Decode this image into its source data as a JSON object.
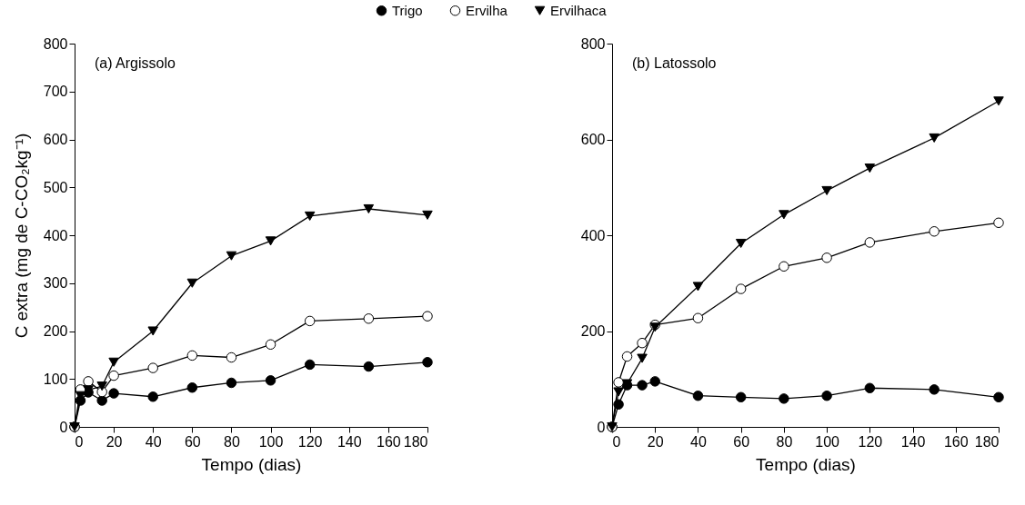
{
  "chart_data": [
    {
      "type": "line",
      "title": "(a) Argissolo",
      "xlabel": "Tempo (dias)",
      "ylabel": "C extra (mg de C-CO₂kg⁻¹)",
      "x": [
        0,
        3,
        7,
        14,
        20,
        40,
        60,
        80,
        100,
        120,
        150,
        180
      ],
      "xlim": [
        0,
        180
      ],
      "xticks": [
        0,
        20,
        40,
        60,
        80,
        100,
        120,
        140,
        160,
        180
      ],
      "ylim": [
        0,
        800
      ],
      "yticks": [
        0,
        100,
        200,
        300,
        400,
        500,
        600,
        700,
        800
      ],
      "legend": "top",
      "series": [
        {
          "name": "Trigo",
          "color": "#000000",
          "marker": "circle",
          "values": [
            0,
            55,
            72,
            55,
            70,
            63,
            82,
            92,
            97,
            130,
            126,
            135
          ]
        },
        {
          "name": "Ervilha",
          "color": "#ffffff",
          "marker": "circle",
          "values": [
            0,
            78,
            95,
            73,
            107,
            123,
            149,
            145,
            172,
            221,
            226,
            231
          ]
        },
        {
          "name": "Ervilhaca",
          "color": "#000000",
          "marker": "triangle",
          "values": [
            0,
            65,
            77,
            85,
            135,
            200,
            300,
            357,
            388,
            440,
            455,
            442
          ]
        }
      ]
    },
    {
      "type": "line",
      "title": "(b) Latossolo",
      "xlabel": "Tempo (dias)",
      "x": [
        0,
        3,
        7,
        14,
        20,
        40,
        60,
        80,
        100,
        120,
        150,
        180
      ],
      "xlim": [
        0,
        180
      ],
      "xticks": [
        0,
        20,
        40,
        60,
        80,
        100,
        120,
        140,
        160,
        180
      ],
      "ylim": [
        0,
        800
      ],
      "yticks": [
        0,
        200,
        400,
        600,
        800
      ],
      "legend": "top",
      "series": [
        {
          "name": "Trigo",
          "color": "#000000",
          "marker": "circle",
          "values": [
            0,
            47,
            87,
            87,
            95,
            65,
            62,
            59,
            65,
            81,
            78,
            62
          ]
        },
        {
          "name": "Ervilha",
          "color": "#ffffff",
          "marker": "circle",
          "values": [
            0,
            93,
            147,
            175,
            213,
            227,
            288,
            335,
            353,
            385,
            408,
            426
          ]
        },
        {
          "name": "Ervilhaca",
          "color": "#000000",
          "marker": "triangle",
          "values": [
            0,
            73,
            90,
            143,
            208,
            293,
            383,
            443,
            493,
            540,
            603,
            680
          ]
        }
      ]
    }
  ]
}
